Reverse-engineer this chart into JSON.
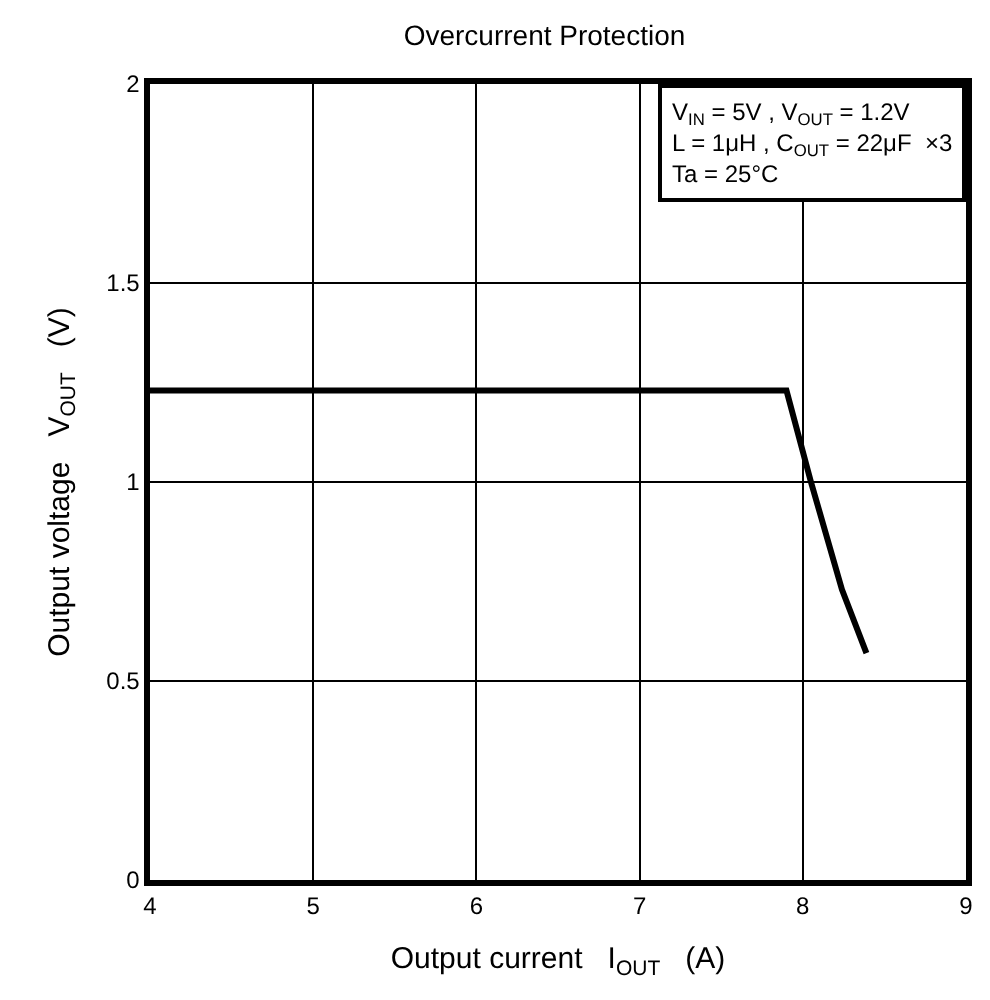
{
  "chart_data": {
    "type": "line",
    "title": "Overcurrent Protection",
    "xlabel": "Output current   I$_{OUT}$   (A)",
    "ylabel": "Output voltage   V$_{OUT}$   (V)",
    "x": [
      4,
      7.9,
      8.05,
      8.24,
      8.39
    ],
    "series": [
      {
        "color": "#000000",
        "values": [
          1.23,
          1.23,
          1.0,
          0.73,
          0.57
        ]
      }
    ],
    "xlim": [
      4,
      9
    ],
    "xticks": [
      4,
      5,
      6,
      7,
      8,
      9
    ],
    "ylim": [
      0,
      2
    ],
    "yticks": [
      0,
      0.5,
      1,
      1.5,
      2
    ],
    "grid": true,
    "legend": false,
    "marker": "none",
    "line_style": "solid",
    "annotations": [
      "V$_{IN}$ = 5V , V$_{OUT}$ = 1.2V\nL = 1μH , C$_{OUT}$ = 22μF  ×3\nTa = 25°C"
    ]
  }
}
